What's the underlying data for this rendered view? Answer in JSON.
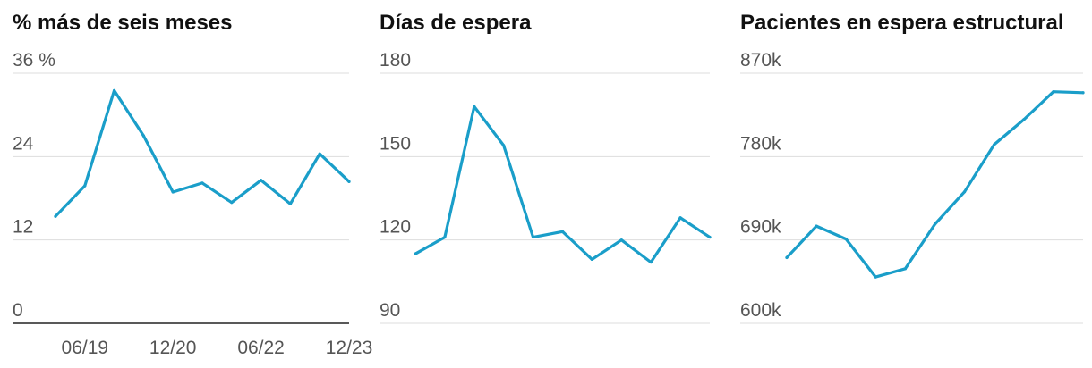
{
  "chart_data": [
    {
      "type": "line",
      "title": "% más de seis meses",
      "ylim": [
        0,
        36
      ],
      "y_ticks": [
        {
          "value": 0,
          "label": "0"
        },
        {
          "value": 12,
          "label": "12"
        },
        {
          "value": 24,
          "label": "24"
        },
        {
          "value": 36,
          "label": "36 %"
        }
      ],
      "x_tick_labels": [
        "06/19",
        "12/20",
        "06/22",
        "12/23"
      ],
      "x_ticks_at_index": [
        1,
        4,
        7,
        10
      ],
      "baseline_axis": true,
      "grid": true,
      "color": "#1a9ec9",
      "values": [
        15.4,
        19.8,
        33.5,
        27.0,
        18.9,
        20.2,
        17.4,
        20.6,
        17.2,
        24.4,
        20.4
      ]
    },
    {
      "type": "line",
      "title": "Días de espera",
      "ylim": [
        90,
        180
      ],
      "y_ticks": [
        {
          "value": 90,
          "label": "90"
        },
        {
          "value": 120,
          "label": "120"
        },
        {
          "value": 150,
          "label": "150"
        },
        {
          "value": 180,
          "label": "180"
        }
      ],
      "grid": true,
      "color": "#1a9ec9",
      "values": [
        115,
        121,
        168,
        154,
        121,
        123,
        113,
        120,
        112,
        128,
        121
      ]
    },
    {
      "type": "line",
      "title": "Pacientes en espera estructural",
      "ylim": [
        600,
        870
      ],
      "y_ticks": [
        {
          "value": 600,
          "label": "600k"
        },
        {
          "value": 690,
          "label": "690k"
        },
        {
          "value": 780,
          "label": "780k"
        },
        {
          "value": 870,
          "label": "870k"
        }
      ],
      "grid": true,
      "color": "#1a9ec9",
      "values": [
        671,
        705,
        691,
        650,
        659,
        707,
        742,
        793,
        820,
        850,
        849
      ]
    }
  ]
}
